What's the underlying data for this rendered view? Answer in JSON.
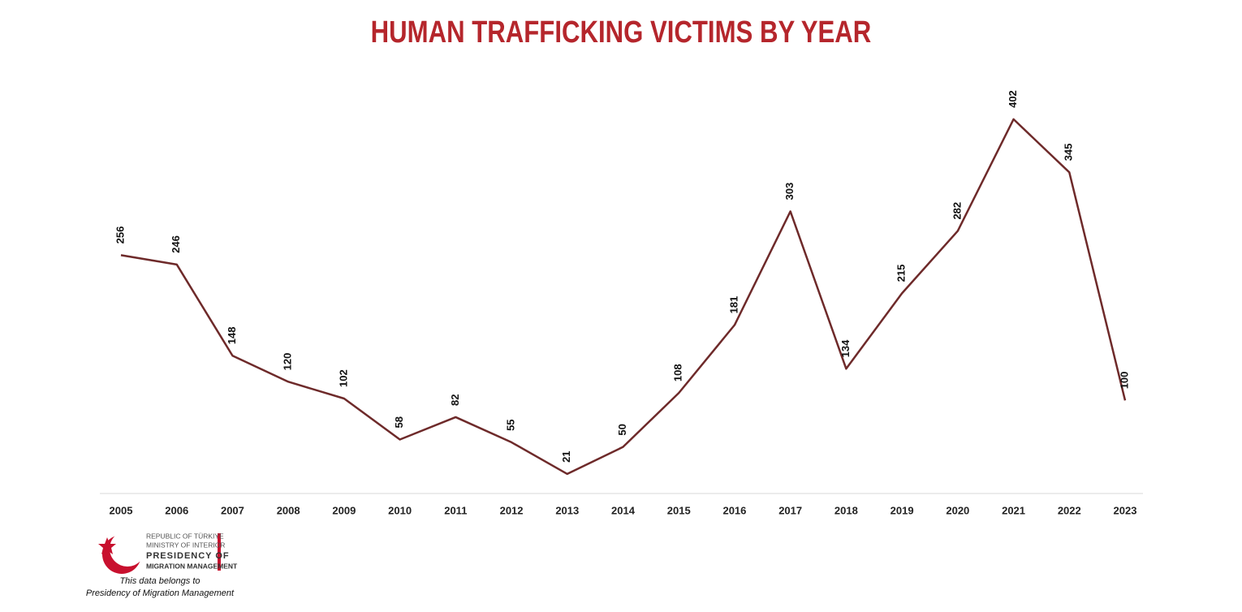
{
  "chart_data": {
    "type": "line",
    "title": "HUMAN TRAFFICKING VICTIMS BY YEAR",
    "categories": [
      "2005",
      "2006",
      "2007",
      "2008",
      "2009",
      "2010",
      "2011",
      "2012",
      "2013",
      "2014",
      "2015",
      "2016",
      "2017",
      "2018",
      "2019",
      "2020",
      "2021",
      "2022",
      "2023"
    ],
    "series": [
      {
        "color": "#6e2a2a",
        "values": [
          256,
          246,
          148,
          120,
          102,
          58,
          82,
          55,
          21,
          50,
          108,
          181,
          303,
          134,
          215,
          282,
          402,
          345,
          100
        ]
      }
    ]
  },
  "footer": {
    "org": [
      "REPUBLIC OF TÜRKIYE",
      "MINISTRY OF INTERIOR",
      "PRESIDENCY OF",
      "MIGRATION MANAGEMENT"
    ],
    "note": [
      "This data belongs to",
      "Presidency of Migration Management"
    ]
  }
}
